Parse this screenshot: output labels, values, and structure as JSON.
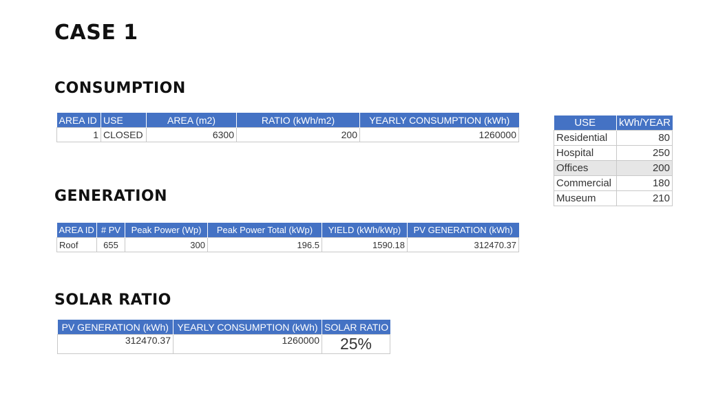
{
  "title": "CASE 1",
  "consumption": {
    "heading": "CONSUMPTION",
    "headers": [
      "AREA ID",
      "USE",
      "AREA (m2)",
      "RATIO (kWh/m2)",
      "YEARLY CONSUMPTION (kWh)"
    ],
    "row": [
      "1",
      "CLOSED",
      "6300",
      "200",
      "1260000"
    ]
  },
  "generation": {
    "heading": "GENERATION",
    "headers": [
      "AREA ID",
      "# PV",
      "Peak Power (Wp)",
      "Peak Power Total (kWp)",
      "YIELD (kWh/kWp)",
      "PV GENERATION (kWh)"
    ],
    "row": [
      "Roof",
      "655",
      "300",
      "196.5",
      "1590.18",
      "312470.37"
    ]
  },
  "solar_ratio": {
    "heading": "SOLAR RATIO",
    "headers": [
      "PV GENERATION (kWh)",
      "YEARLY CONSUMPTION (kWh)",
      "SOLAR RATIO"
    ],
    "row": [
      "312470.37",
      "1260000",
      "25%"
    ]
  },
  "use_table": {
    "headers": [
      "USE",
      "kWh/YEAR"
    ],
    "rows": [
      [
        "Residential",
        "80"
      ],
      [
        "Hospital",
        "250"
      ],
      [
        "Offices",
        "200"
      ],
      [
        "Commercial",
        "180"
      ],
      [
        "Museum",
        "210"
      ]
    ],
    "highlight_color": "#e6e6e6"
  },
  "colors": {
    "header_bg": "#4472c4",
    "header_text": "#ffffff",
    "grid": "#c8c8c8"
  }
}
